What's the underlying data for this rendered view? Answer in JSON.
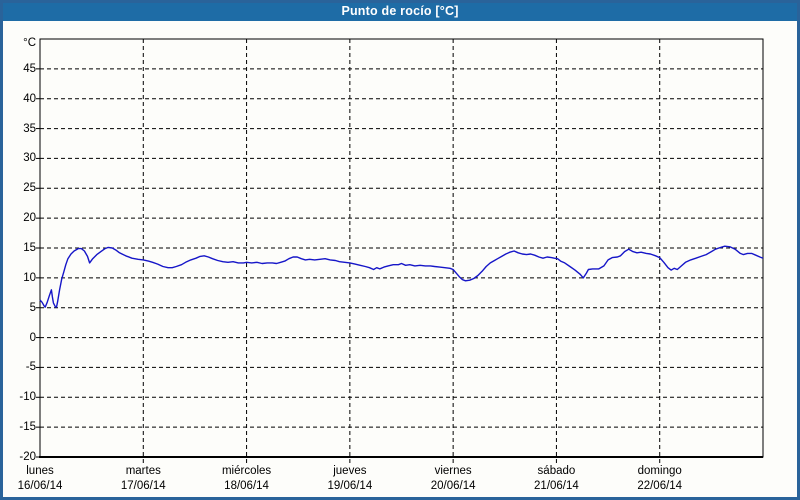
{
  "window": {
    "title": "Punto de rocío [°C]"
  },
  "colors": {
    "frame_border": "#2a639a",
    "titlebar_background": "#1e6ca6",
    "title_text": "#ffffff",
    "plot_background": "#fdfdfa",
    "grid": "#000000",
    "series_line": "#1616c8"
  },
  "chart_data": {
    "type": "line",
    "title": "Punto de rocío [°C]",
    "ylabel": "°C",
    "ylim": [
      -20,
      50
    ],
    "yticks": [
      45,
      40,
      35,
      30,
      25,
      20,
      15,
      10,
      5,
      0,
      -5,
      -10,
      -15,
      -20
    ],
    "grid": "dashed",
    "legend": "none",
    "x_axis": {
      "unit": "days",
      "days": [
        {
          "name": "lunes",
          "date": "16/06/14"
        },
        {
          "name": "martes",
          "date": "17/06/14"
        },
        {
          "name": "miércoles",
          "date": "18/06/14"
        },
        {
          "name": "jueves",
          "date": "19/06/14"
        },
        {
          "name": "viernes",
          "date": "20/06/14"
        },
        {
          "name": "sábado",
          "date": "21/06/14"
        },
        {
          "name": "domingo",
          "date": "22/06/14"
        }
      ]
    },
    "series": [
      {
        "name": "Punto de rocío",
        "color": "#1616c8",
        "points": [
          [
            0,
            6.3
          ],
          [
            0.02,
            5.9
          ],
          [
            0.04,
            5.3
          ],
          [
            0.05,
            5.1
          ],
          [
            0.07,
            5.9
          ],
          [
            0.09,
            7.0
          ],
          [
            0.11,
            8.0
          ],
          [
            0.12,
            6.8
          ],
          [
            0.13,
            5.8
          ],
          [
            0.15,
            5.1
          ],
          [
            0.16,
            5.1
          ],
          [
            0.17,
            6.0
          ],
          [
            0.19,
            8.0
          ],
          [
            0.21,
            9.8
          ],
          [
            0.23,
            11.0
          ],
          [
            0.25,
            12.2
          ],
          [
            0.27,
            13.2
          ],
          [
            0.3,
            14.0
          ],
          [
            0.33,
            14.5
          ],
          [
            0.37,
            14.9
          ],
          [
            0.4,
            14.9
          ],
          [
            0.43,
            14.5
          ],
          [
            0.46,
            13.6
          ],
          [
            0.48,
            12.5
          ],
          [
            0.51,
            13.2
          ],
          [
            0.55,
            13.9
          ],
          [
            0.59,
            14.4
          ],
          [
            0.63,
            14.9
          ],
          [
            0.66,
            15.1
          ],
          [
            0.7,
            15.0
          ],
          [
            0.74,
            14.6
          ],
          [
            0.77,
            14.2
          ],
          [
            0.83,
            13.7
          ],
          [
            0.89,
            13.3
          ],
          [
            0.95,
            13.1
          ],
          [
            1.0,
            13.0
          ],
          [
            1.05,
            12.8
          ],
          [
            1.09,
            12.6
          ],
          [
            1.14,
            12.3
          ],
          [
            1.19,
            11.9
          ],
          [
            1.24,
            11.7
          ],
          [
            1.28,
            11.7
          ],
          [
            1.32,
            11.9
          ],
          [
            1.37,
            12.2
          ],
          [
            1.41,
            12.6
          ],
          [
            1.46,
            13.0
          ],
          [
            1.51,
            13.3
          ],
          [
            1.55,
            13.6
          ],
          [
            1.59,
            13.7
          ],
          [
            1.63,
            13.5
          ],
          [
            1.67,
            13.2
          ],
          [
            1.72,
            12.9
          ],
          [
            1.77,
            12.7
          ],
          [
            1.82,
            12.6
          ],
          [
            1.87,
            12.7
          ],
          [
            1.92,
            12.5
          ],
          [
            1.97,
            12.5
          ],
          [
            2.0,
            12.6
          ],
          [
            2.05,
            12.5
          ],
          [
            2.1,
            12.6
          ],
          [
            2.15,
            12.4
          ],
          [
            2.2,
            12.5
          ],
          [
            2.25,
            12.5
          ],
          [
            2.29,
            12.4
          ],
          [
            2.33,
            12.6
          ],
          [
            2.37,
            12.8
          ],
          [
            2.41,
            13.2
          ],
          [
            2.45,
            13.5
          ],
          [
            2.49,
            13.5
          ],
          [
            2.53,
            13.2
          ],
          [
            2.57,
            13.0
          ],
          [
            2.61,
            13.1
          ],
          [
            2.66,
            13.0
          ],
          [
            2.71,
            13.1
          ],
          [
            2.76,
            13.2
          ],
          [
            2.81,
            13.0
          ],
          [
            2.86,
            12.9
          ],
          [
            2.9,
            12.7
          ],
          [
            2.95,
            12.6
          ],
          [
            3.0,
            12.5
          ],
          [
            3.05,
            12.3
          ],
          [
            3.1,
            12.1
          ],
          [
            3.15,
            11.9
          ],
          [
            3.19,
            11.7
          ],
          [
            3.23,
            11.4
          ],
          [
            3.26,
            11.7
          ],
          [
            3.29,
            11.5
          ],
          [
            3.33,
            11.8
          ],
          [
            3.37,
            12.0
          ],
          [
            3.42,
            12.2
          ],
          [
            3.47,
            12.2
          ],
          [
            3.5,
            12.4
          ],
          [
            3.54,
            12.1
          ],
          [
            3.58,
            12.2
          ],
          [
            3.63,
            12.0
          ],
          [
            3.68,
            12.1
          ],
          [
            3.73,
            12.0
          ],
          [
            3.78,
            12.0
          ],
          [
            3.82,
            11.9
          ],
          [
            3.87,
            11.8
          ],
          [
            3.92,
            11.7
          ],
          [
            3.97,
            11.6
          ],
          [
            4.0,
            11.4
          ],
          [
            4.03,
            10.8
          ],
          [
            4.06,
            10.2
          ],
          [
            4.09,
            9.7
          ],
          [
            4.12,
            9.5
          ],
          [
            4.16,
            9.6
          ],
          [
            4.2,
            9.9
          ],
          [
            4.24,
            10.4
          ],
          [
            4.28,
            11.1
          ],
          [
            4.32,
            11.9
          ],
          [
            4.36,
            12.5
          ],
          [
            4.4,
            12.9
          ],
          [
            4.43,
            13.2
          ],
          [
            4.47,
            13.6
          ],
          [
            4.51,
            14.0
          ],
          [
            4.55,
            14.3
          ],
          [
            4.59,
            14.5
          ],
          [
            4.63,
            14.2
          ],
          [
            4.67,
            14.0
          ],
          [
            4.71,
            13.9
          ],
          [
            4.75,
            14.0
          ],
          [
            4.79,
            13.8
          ],
          [
            4.83,
            13.5
          ],
          [
            4.87,
            13.3
          ],
          [
            4.91,
            13.5
          ],
          [
            4.95,
            13.4
          ],
          [
            4.98,
            13.3
          ],
          [
            5.01,
            13.2
          ],
          [
            5.04,
            12.8
          ],
          [
            5.08,
            12.5
          ],
          [
            5.13,
            11.9
          ],
          [
            5.18,
            11.3
          ],
          [
            5.23,
            10.6
          ],
          [
            5.26,
            10.0
          ],
          [
            5.29,
            10.8
          ],
          [
            5.31,
            11.4
          ],
          [
            5.35,
            11.5
          ],
          [
            5.41,
            11.5
          ],
          [
            5.46,
            12.0
          ],
          [
            5.5,
            13.0
          ],
          [
            5.54,
            13.4
          ],
          [
            5.59,
            13.5
          ],
          [
            5.62,
            13.7
          ],
          [
            5.66,
            14.4
          ],
          [
            5.7,
            14.8
          ],
          [
            5.74,
            14.4
          ],
          [
            5.78,
            14.2
          ],
          [
            5.82,
            14.3
          ],
          [
            5.87,
            14.1
          ],
          [
            5.91,
            14.0
          ],
          [
            5.96,
            13.7
          ],
          [
            6.0,
            13.4
          ],
          [
            6.04,
            12.6
          ],
          [
            6.08,
            11.7
          ],
          [
            6.11,
            11.3
          ],
          [
            6.14,
            11.6
          ],
          [
            6.17,
            11.4
          ],
          [
            6.21,
            12.0
          ],
          [
            6.25,
            12.6
          ],
          [
            6.3,
            13.0
          ],
          [
            6.35,
            13.3
          ],
          [
            6.4,
            13.6
          ],
          [
            6.45,
            13.9
          ],
          [
            6.5,
            14.4
          ],
          [
            6.54,
            14.8
          ],
          [
            6.59,
            15.1
          ],
          [
            6.63,
            15.3
          ],
          [
            6.68,
            15.2
          ],
          [
            6.73,
            14.8
          ],
          [
            6.78,
            14.1
          ],
          [
            6.81,
            13.9
          ],
          [
            6.85,
            14.1
          ],
          [
            6.89,
            14.1
          ],
          [
            6.93,
            13.8
          ],
          [
            6.97,
            13.5
          ],
          [
            7.0,
            13.3
          ]
        ]
      }
    ]
  }
}
